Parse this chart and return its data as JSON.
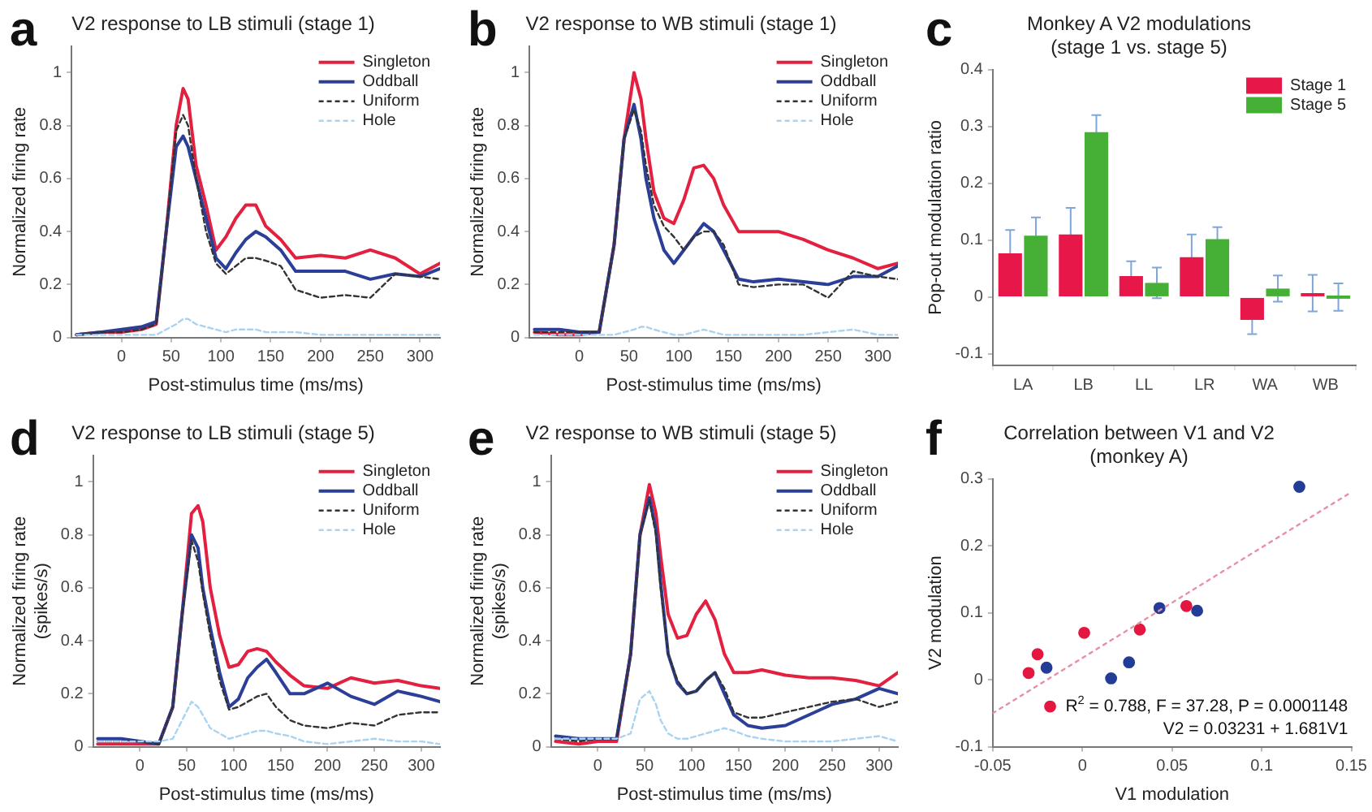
{
  "chart_data": [
    {
      "type": "line",
      "title": "V2 response to LB stimuli (stage 1)",
      "xlabel": "Post-stimulus time (ms/ms)",
      "ylabel": "Normalized firing rate",
      "annotations": [
        "a"
      ],
      "marker": "none",
      "legend": "top right",
      "xlim": [
        -50,
        320
      ],
      "xticks": [
        0,
        50,
        100,
        150,
        200,
        250,
        300
      ],
      "ylim": [
        0,
        1.1
      ],
      "yticks": [
        0,
        0.2,
        0.4,
        0.6,
        0.8,
        1
      ],
      "x": [
        -45,
        -20,
        0,
        20,
        35,
        45,
        55,
        62,
        67,
        75,
        85,
        95,
        105,
        115,
        125,
        135,
        145,
        160,
        175,
        200,
        225,
        250,
        275,
        300,
        320
      ],
      "series": [
        {
          "name": "Singleton",
          "color": "#e3203f",
          "values": [
            0.01,
            0.02,
            0.02,
            0.03,
            0.05,
            0.4,
            0.8,
            0.94,
            0.9,
            0.65,
            0.5,
            0.33,
            0.38,
            0.45,
            0.5,
            0.5,
            0.42,
            0.37,
            0.3,
            0.31,
            0.3,
            0.33,
            0.3,
            0.24,
            0.28
          ]
        },
        {
          "name": "Oddball",
          "color": "#2b3f98",
          "values": [
            0.01,
            0.02,
            0.03,
            0.04,
            0.06,
            0.4,
            0.72,
            0.76,
            0.72,
            0.6,
            0.45,
            0.3,
            0.26,
            0.32,
            0.37,
            0.4,
            0.38,
            0.33,
            0.25,
            0.25,
            0.25,
            0.22,
            0.24,
            0.23,
            0.26
          ]
        },
        {
          "name": "Uniform",
          "color": "#333333",
          "line_style": "dashed",
          "values": [
            0.01,
            0.02,
            0.02,
            0.03,
            0.05,
            0.4,
            0.78,
            0.84,
            0.8,
            0.6,
            0.4,
            0.28,
            0.24,
            0.27,
            0.3,
            0.3,
            0.29,
            0.27,
            0.18,
            0.15,
            0.16,
            0.15,
            0.24,
            0.23,
            0.22
          ]
        },
        {
          "name": "Hole",
          "color": "#a9d3f0",
          "line_style": "dashed",
          "values": [
            0.01,
            0.01,
            0.01,
            0.01,
            0.01,
            0.03,
            0.05,
            0.07,
            0.07,
            0.05,
            0.04,
            0.03,
            0.02,
            0.03,
            0.03,
            0.03,
            0.02,
            0.02,
            0.02,
            0.01,
            0.01,
            0.01,
            0.01,
            0.01,
            0.01
          ]
        }
      ]
    },
    {
      "type": "line",
      "title": "V2 response to WB stimuli (stage 1)",
      "xlabel": "Post-stimulus time (ms/ms)",
      "ylabel": "Normalized firing rate",
      "annotations": [
        "b"
      ],
      "marker": "none",
      "legend": "top right",
      "xlim": [
        -50,
        320
      ],
      "xticks": [
        0,
        50,
        100,
        150,
        200,
        250,
        300
      ],
      "ylim": [
        0,
        1.1
      ],
      "yticks": [
        0,
        0.2,
        0.4,
        0.6,
        0.8,
        1
      ],
      "x": [
        -45,
        -20,
        0,
        20,
        35,
        45,
        55,
        62,
        67,
        75,
        85,
        95,
        105,
        115,
        125,
        135,
        145,
        160,
        175,
        200,
        225,
        250,
        275,
        300,
        320
      ],
      "series": [
        {
          "name": "Singleton",
          "color": "#e3203f",
          "values": [
            0.02,
            0.01,
            0.01,
            0.02,
            0.35,
            0.75,
            1.0,
            0.9,
            0.75,
            0.55,
            0.45,
            0.43,
            0.52,
            0.64,
            0.65,
            0.6,
            0.5,
            0.4,
            0.4,
            0.4,
            0.37,
            0.33,
            0.3,
            0.26,
            0.28
          ]
        },
        {
          "name": "Oddball",
          "color": "#2b3f98",
          "values": [
            0.03,
            0.03,
            0.02,
            0.02,
            0.35,
            0.75,
            0.88,
            0.75,
            0.6,
            0.45,
            0.33,
            0.28,
            0.33,
            0.38,
            0.43,
            0.4,
            0.33,
            0.22,
            0.21,
            0.22,
            0.21,
            0.2,
            0.23,
            0.23,
            0.27
          ]
        },
        {
          "name": "Uniform",
          "color": "#333333",
          "line_style": "dashed",
          "values": [
            0.02,
            0.02,
            0.02,
            0.02,
            0.35,
            0.75,
            0.86,
            0.78,
            0.65,
            0.5,
            0.42,
            0.38,
            0.33,
            0.38,
            0.4,
            0.4,
            0.35,
            0.2,
            0.19,
            0.2,
            0.2,
            0.15,
            0.25,
            0.23,
            0.22
          ]
        },
        {
          "name": "Hole",
          "color": "#a9d3f0",
          "line_style": "dashed",
          "values": [
            0.01,
            0.01,
            0.01,
            0.01,
            0.01,
            0.02,
            0.03,
            0.04,
            0.04,
            0.03,
            0.02,
            0.01,
            0.01,
            0.02,
            0.03,
            0.02,
            0.01,
            0.01,
            0.01,
            0.01,
            0.01,
            0.02,
            0.03,
            0.01,
            0.01
          ]
        }
      ]
    },
    {
      "type": "bar",
      "title": "Monkey A V2 modulations\n(stage 1 vs. stage 5)",
      "ylabel": "Pop-out modulation ratio",
      "annotations": [
        "c"
      ],
      "legend": "top right",
      "categories": [
        "LA",
        "LB",
        "LL",
        "LR",
        "WA",
        "WB"
      ],
      "ylim": [
        -0.12,
        0.4
      ],
      "yticks": [
        -0.1,
        0,
        0.1,
        0.2,
        0.3,
        0.4
      ],
      "series": [
        {
          "name": "Stage 1",
          "color": "#e8174a",
          "values": [
            0.077,
            0.11,
            0.037,
            0.07,
            -0.04,
            0.007
          ],
          "errors": [
            0.041,
            0.047,
            0.026,
            0.04,
            0.025,
            0.032
          ]
        },
        {
          "name": "Stage 5",
          "color": "#45b035",
          "values": [
            0.108,
            0.29,
            0.025,
            0.102,
            0.015,
            0
          ],
          "errors": [
            0.032,
            0.03,
            0.027,
            0.021,
            0.023,
            0.024
          ]
        }
      ]
    },
    {
      "type": "line",
      "title": "V2 response to LB stimuli (stage 5)",
      "xlabel": "Post-stimulus time (ms/ms)",
      "ylabel": "Normalized firing rate\n(spikes/s)",
      "annotations": [
        "d"
      ],
      "marker": "none",
      "legend": "top right",
      "xlim": [
        -50,
        320
      ],
      "xticks": [
        0,
        50,
        100,
        150,
        200,
        250,
        300
      ],
      "ylim": [
        0,
        1.1
      ],
      "yticks": [
        0,
        0.2,
        0.4,
        0.6,
        0.8,
        1
      ],
      "x": [
        -45,
        -20,
        0,
        20,
        35,
        45,
        55,
        62,
        67,
        75,
        85,
        95,
        105,
        115,
        125,
        135,
        145,
        160,
        175,
        200,
        225,
        250,
        275,
        300,
        320
      ],
      "series": [
        {
          "name": "Singleton",
          "color": "#e3203f",
          "values": [
            0.01,
            0.01,
            0.01,
            0.01,
            0.15,
            0.5,
            0.88,
            0.91,
            0.85,
            0.6,
            0.42,
            0.3,
            0.31,
            0.36,
            0.37,
            0.36,
            0.32,
            0.27,
            0.23,
            0.22,
            0.26,
            0.24,
            0.25,
            0.23,
            0.22
          ]
        },
        {
          "name": "Oddball",
          "color": "#2b3f98",
          "values": [
            0.03,
            0.03,
            0.02,
            0.01,
            0.15,
            0.5,
            0.8,
            0.75,
            0.6,
            0.45,
            0.28,
            0.15,
            0.18,
            0.26,
            0.3,
            0.33,
            0.28,
            0.2,
            0.2,
            0.24,
            0.19,
            0.16,
            0.21,
            0.19,
            0.17
          ]
        },
        {
          "name": "Uniform",
          "color": "#333333",
          "line_style": "dashed",
          "values": [
            0.02,
            0.02,
            0.02,
            0.01,
            0.15,
            0.5,
            0.78,
            0.7,
            0.58,
            0.42,
            0.25,
            0.14,
            0.15,
            0.17,
            0.19,
            0.2,
            0.15,
            0.1,
            0.08,
            0.07,
            0.09,
            0.08,
            0.12,
            0.13,
            0.13
          ]
        },
        {
          "name": "Hole",
          "color": "#a9d3f0",
          "line_style": "dashed",
          "values": [
            0.02,
            0.02,
            0.02,
            0.02,
            0.03,
            0.1,
            0.17,
            0.15,
            0.12,
            0.07,
            0.05,
            0.03,
            0.04,
            0.05,
            0.06,
            0.06,
            0.05,
            0.04,
            0.02,
            0.01,
            0.02,
            0.03,
            0.02,
            0.02,
            0.01
          ]
        }
      ]
    },
    {
      "type": "line",
      "title": "V2 response to WB stimuli (stage 5)",
      "xlabel": "Post-stimulus time (ms/ms)",
      "ylabel": "Normalized firing rate\n(spikes/s)",
      "annotations": [
        "e"
      ],
      "marker": "none",
      "legend": "top right",
      "xlim": [
        -50,
        320
      ],
      "xticks": [
        0,
        50,
        100,
        150,
        200,
        250,
        300
      ],
      "ylim": [
        0,
        1.1
      ],
      "yticks": [
        0,
        0.2,
        0.4,
        0.6,
        0.8,
        1
      ],
      "x": [
        -45,
        -20,
        0,
        20,
        35,
        45,
        55,
        62,
        67,
        75,
        85,
        95,
        105,
        115,
        125,
        135,
        145,
        160,
        175,
        200,
        225,
        250,
        275,
        300,
        320
      ],
      "series": [
        {
          "name": "Singleton",
          "color": "#e3203f",
          "values": [
            0.02,
            0.01,
            0.02,
            0.02,
            0.35,
            0.8,
            0.99,
            0.88,
            0.72,
            0.5,
            0.41,
            0.42,
            0.5,
            0.55,
            0.48,
            0.35,
            0.28,
            0.28,
            0.29,
            0.27,
            0.26,
            0.26,
            0.25,
            0.23,
            0.28
          ]
        },
        {
          "name": "Oddball",
          "color": "#2b3f98",
          "values": [
            0.04,
            0.03,
            0.03,
            0.03,
            0.35,
            0.8,
            0.94,
            0.82,
            0.62,
            0.35,
            0.24,
            0.2,
            0.21,
            0.25,
            0.28,
            0.2,
            0.12,
            0.08,
            0.07,
            0.08,
            0.12,
            0.16,
            0.18,
            0.22,
            0.2
          ]
        },
        {
          "name": "Uniform",
          "color": "#333333",
          "line_style": "dashed",
          "values": [
            0.03,
            0.02,
            0.03,
            0.03,
            0.35,
            0.8,
            0.93,
            0.8,
            0.6,
            0.35,
            0.25,
            0.2,
            0.21,
            0.25,
            0.28,
            0.22,
            0.13,
            0.11,
            0.11,
            0.13,
            0.15,
            0.17,
            0.18,
            0.15,
            0.17
          ]
        },
        {
          "name": "Hole",
          "color": "#a9d3f0",
          "line_style": "dashed",
          "values": [
            0.03,
            0.03,
            0.03,
            0.03,
            0.05,
            0.18,
            0.21,
            0.16,
            0.1,
            0.05,
            0.03,
            0.03,
            0.04,
            0.05,
            0.06,
            0.07,
            0.06,
            0.04,
            0.03,
            0.02,
            0.02,
            0.02,
            0.03,
            0.04,
            0.02
          ]
        }
      ]
    },
    {
      "type": "scatter",
      "title": "Correlation between V1 and V2\n(monkey A)",
      "xlabel": "V1 modulation",
      "ylabel": "V2 modulation",
      "annotations": [
        "f",
        "R$^{2}$ = 0.788, F = 37.28, P = 0.0001148",
        "V2 = 0.03231 + 1.681V1"
      ],
      "marker": "circle",
      "xlim": [
        -0.05,
        0.15
      ],
      "xticks": [
        -0.05,
        0,
        0.05,
        0.1,
        0.15
      ],
      "ylim": [
        -0.1,
        0.3
      ],
      "yticks": [
        -0.1,
        0,
        0.1,
        0.2,
        0.3
      ],
      "series": [
        {
          "color": "#e3173f",
          "x": [
            -0.03,
            -0.025,
            -0.018,
            0.001,
            0.032,
            0.058
          ],
          "values": [
            0.01,
            0.038,
            -0.04,
            0.07,
            0.075,
            0.11
          ]
        },
        {
          "color": "#233d97",
          "x": [
            -0.02,
            0.016,
            0.026,
            0.043,
            0.064,
            0.121
          ],
          "values": [
            0.018,
            0.002,
            0.026,
            0.107,
            0.103,
            0.288
          ]
        },
        {
          "type": "line",
          "marker": "none",
          "line_style": "dotted",
          "color": "#e891a6",
          "x": [
            -0.05,
            0.15
          ],
          "values": [
            -0.05,
            0.28
          ]
        }
      ]
    }
  ]
}
